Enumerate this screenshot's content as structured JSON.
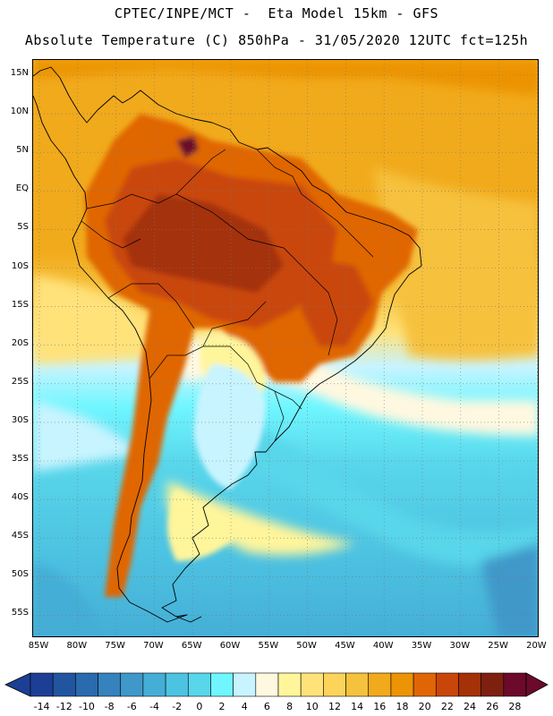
{
  "header": {
    "line1": "CPTEC/INPE/MCT -  Eta Model 15km - GFS",
    "line2": "Absolute Temperature (C) 850hPa - 31/05/2020 12UTC fct=125h"
  },
  "map": {
    "lat_labels": [
      "15N",
      "10N",
      "5N",
      "EQ",
      "5S",
      "10S",
      "15S",
      "20S",
      "25S",
      "30S",
      "35S",
      "40S",
      "45S",
      "50S",
      "55S"
    ],
    "lon_labels": [
      "85W",
      "80W",
      "75W",
      "70W",
      "65W",
      "60W",
      "55W",
      "50W",
      "45W",
      "40W",
      "35W",
      "30W",
      "25W",
      "20W"
    ],
    "region_temperatures_c": {
      "amazon_core": 26,
      "venezuela_hotspot": 28,
      "northeast_brazil": 24,
      "tropical_atlantic": 20,
      "south_brazil": 8,
      "patagonia": 6,
      "southern_ocean": 2
    }
  },
  "colorbar": {
    "labels": [
      "-14",
      "-12",
      "-10",
      "-8",
      "-6",
      "-4",
      "-2",
      "0",
      "2",
      "4",
      "6",
      "8",
      "10",
      "12",
      "14",
      "16",
      "18",
      "20",
      "22",
      "24",
      "26",
      "28"
    ],
    "colors": [
      "#1c3f95",
      "#22559f",
      "#2a6aae",
      "#3582bd",
      "#3f98c9",
      "#45aed6",
      "#4dc3e2",
      "#58d6ea",
      "#6ff6ff",
      "#c8f4ff",
      "#fff8e0",
      "#fff59b",
      "#ffe27a",
      "#fcd45a",
      "#f6c13c",
      "#f1aa1b",
      "#ec9306",
      "#e06605",
      "#c9460a",
      "#a43108",
      "#7e200f",
      "#6b0a2a"
    ]
  }
}
